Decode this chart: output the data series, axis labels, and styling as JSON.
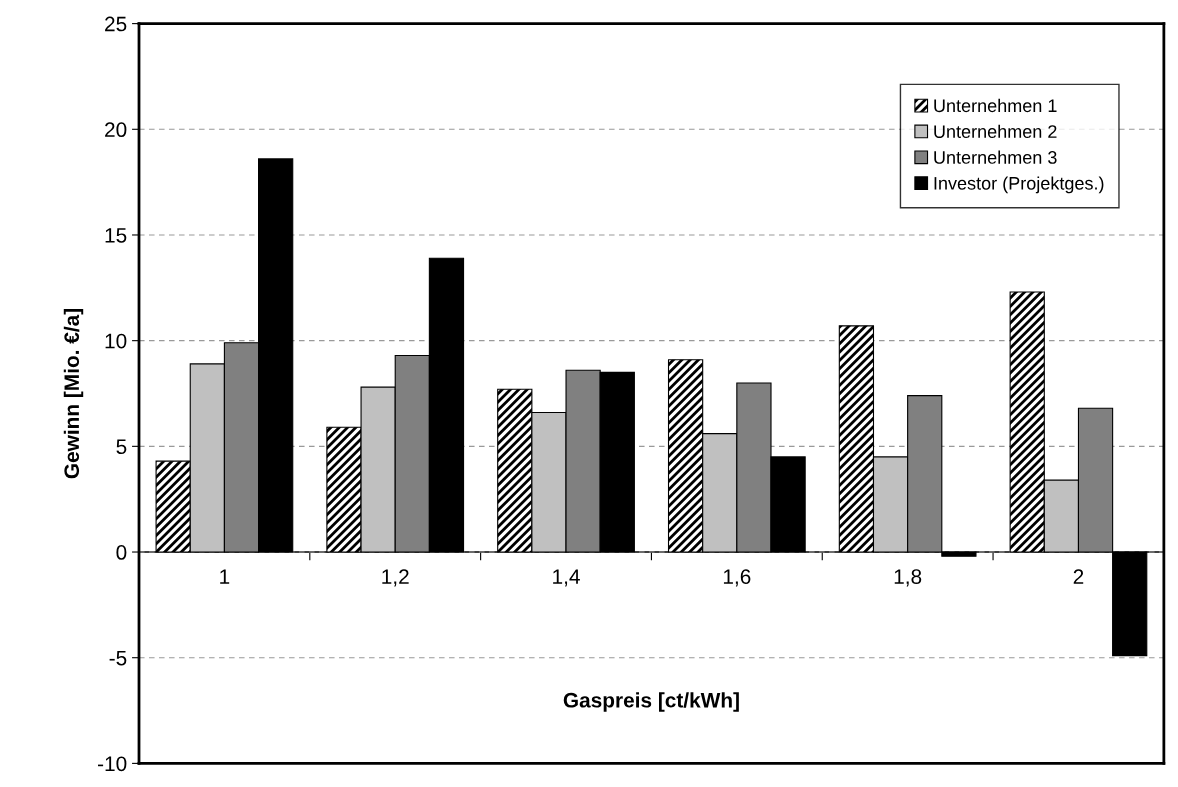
{
  "chart_data": {
    "type": "bar",
    "xlabel": "Gaspreis [ct/kWh]",
    "ylabel": "Gewinn [Mio. €/a]",
    "categories": [
      "1",
      "1,2",
      "1,4",
      "1,6",
      "1,8",
      "2"
    ],
    "series": [
      {
        "name": "Unternehmen 1",
        "color": "#000000",
        "values": [
          4.3,
          5.9,
          7.7,
          9.1,
          10.7,
          12.3
        ]
      },
      {
        "name": "Unternehmen 2",
        "color": "#c0c0c0",
        "values": [
          8.9,
          7.8,
          6.6,
          5.6,
          4.5,
          3.4
        ]
      },
      {
        "name": "Unternehmen 3",
        "color": "#808080",
        "values": [
          9.9,
          9.3,
          8.6,
          8.0,
          7.4,
          6.8
        ]
      },
      {
        "name": "Investor (Projektges.)",
        "color": "#000000",
        "values": [
          18.6,
          13.9,
          8.5,
          4.5,
          -0.2,
          -4.9
        ]
      }
    ],
    "ylim": [
      -10,
      25
    ],
    "yticks": [
      -10,
      -5,
      0,
      5,
      10,
      15,
      20,
      25
    ],
    "grid": "y",
    "legend": "top right"
  }
}
